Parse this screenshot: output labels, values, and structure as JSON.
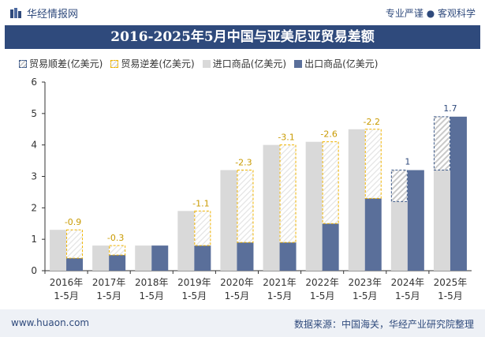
{
  "header": {
    "brand": "华经情报网",
    "slogan": "专业严谨 ● 客观科学"
  },
  "footer": {
    "url": "www.huaon.com",
    "source": "数据来源：中国海关，华经产业研究院整理"
  },
  "colors": {
    "title_bg": "#2f4a7c",
    "import": "#d9d9d9",
    "export": "#5a6f9a",
    "deficit_border": "#f0b400",
    "deficit_label": "#c99a00",
    "retention_label": "#2f4a7c"
  },
  "chart_data": {
    "type": "bar",
    "title": "2016-2025年5月中国与亚美尼亚贸易差额",
    "categories": [
      "2016年\n1-5月",
      "2017年\n1-5月",
      "2018年\n1-5月",
      "2019年\n1-5月",
      "2020年\n1-5月",
      "2021年\n1-5月",
      "2022年\n1-5月",
      "2023年\n1-5月",
      "2024年\n1-5月",
      "2025年\n1-5月"
    ],
    "series": [
      {
        "name": "进口商品(亿美元)",
        "values": [
          1.3,
          0.8,
          0.8,
          1.9,
          3.2,
          4.0,
          4.1,
          4.5,
          2.2,
          3.2
        ]
      },
      {
        "name": "出口商品(亿美元)",
        "values": [
          0.4,
          0.5,
          0.8,
          0.8,
          0.9,
          0.9,
          1.5,
          2.3,
          3.2,
          4.9
        ]
      }
    ],
    "balance_series": [
      {
        "name": "贸易顺差(亿美元)"
      },
      {
        "name": "贸易逆差(亿美元)"
      }
    ],
    "balance_labels": [
      "-0.9",
      "-0.3",
      "",
      "-1.1",
      "-2.3",
      "-3.1",
      "-2.6",
      "-2.2",
      "1",
      "1.7"
    ],
    "ylim": [
      0,
      6
    ],
    "yticks": [
      "0",
      "1",
      "2",
      "3",
      "4",
      "5",
      "6"
    ],
    "grid": false,
    "legend_position": "top-left"
  }
}
